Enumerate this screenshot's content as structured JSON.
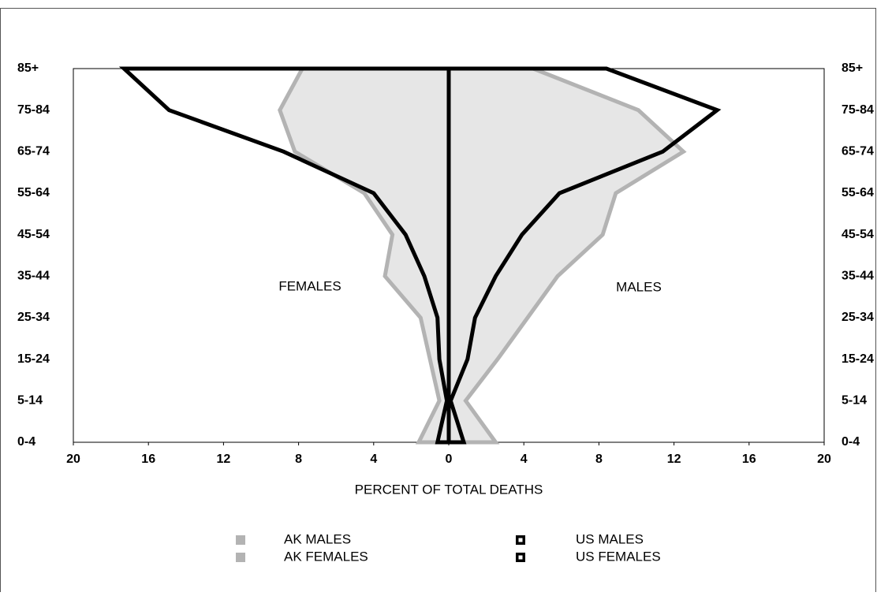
{
  "chart_data": {
    "type": "line",
    "x_label": "PERCENT OF TOTAL DEATHS",
    "annotations": [
      "FEMALES",
      "MALES"
    ],
    "categories": [
      "0-4",
      "5-14",
      "15-24",
      "25-34",
      "35-44",
      "45-54",
      "55-64",
      "65-74",
      "75-84",
      "85+"
    ],
    "series": [
      {
        "name": "AK MALES",
        "color": "#b3b3b3",
        "values": [
          2.5,
          0.9,
          2.6,
          4.2,
          5.8,
          8.2,
          8.9,
          12.5,
          10.1,
          4.5
        ]
      },
      {
        "name": "AK FEMALES",
        "color": "#b3b3b3",
        "values": [
          -1.6,
          -0.5,
          -1.0,
          -1.5,
          -3.4,
          -3.0,
          -4.5,
          -8.2,
          -9.0,
          -7.8
        ]
      },
      {
        "name": "US MALES",
        "color": "#000000",
        "values": [
          0.8,
          0.1,
          1.0,
          1.4,
          2.5,
          3.9,
          5.9,
          11.4,
          14.3,
          8.4
        ]
      },
      {
        "name": "US FEMALES",
        "color": "#000000",
        "values": [
          -0.6,
          -0.1,
          -0.5,
          -0.6,
          -1.3,
          -2.3,
          -4.0,
          -8.8,
          -14.9,
          -17.3
        ]
      }
    ],
    "xlim": [
      -20,
      20
    ],
    "xticks": [
      {
        "value": -20,
        "label": "20"
      },
      {
        "value": -16,
        "label": "16"
      },
      {
        "value": -12,
        "label": "12"
      },
      {
        "value": -8,
        "label": "8"
      },
      {
        "value": -4,
        "label": "4"
      },
      0,
      4,
      8,
      12,
      16,
      20
    ]
  }
}
